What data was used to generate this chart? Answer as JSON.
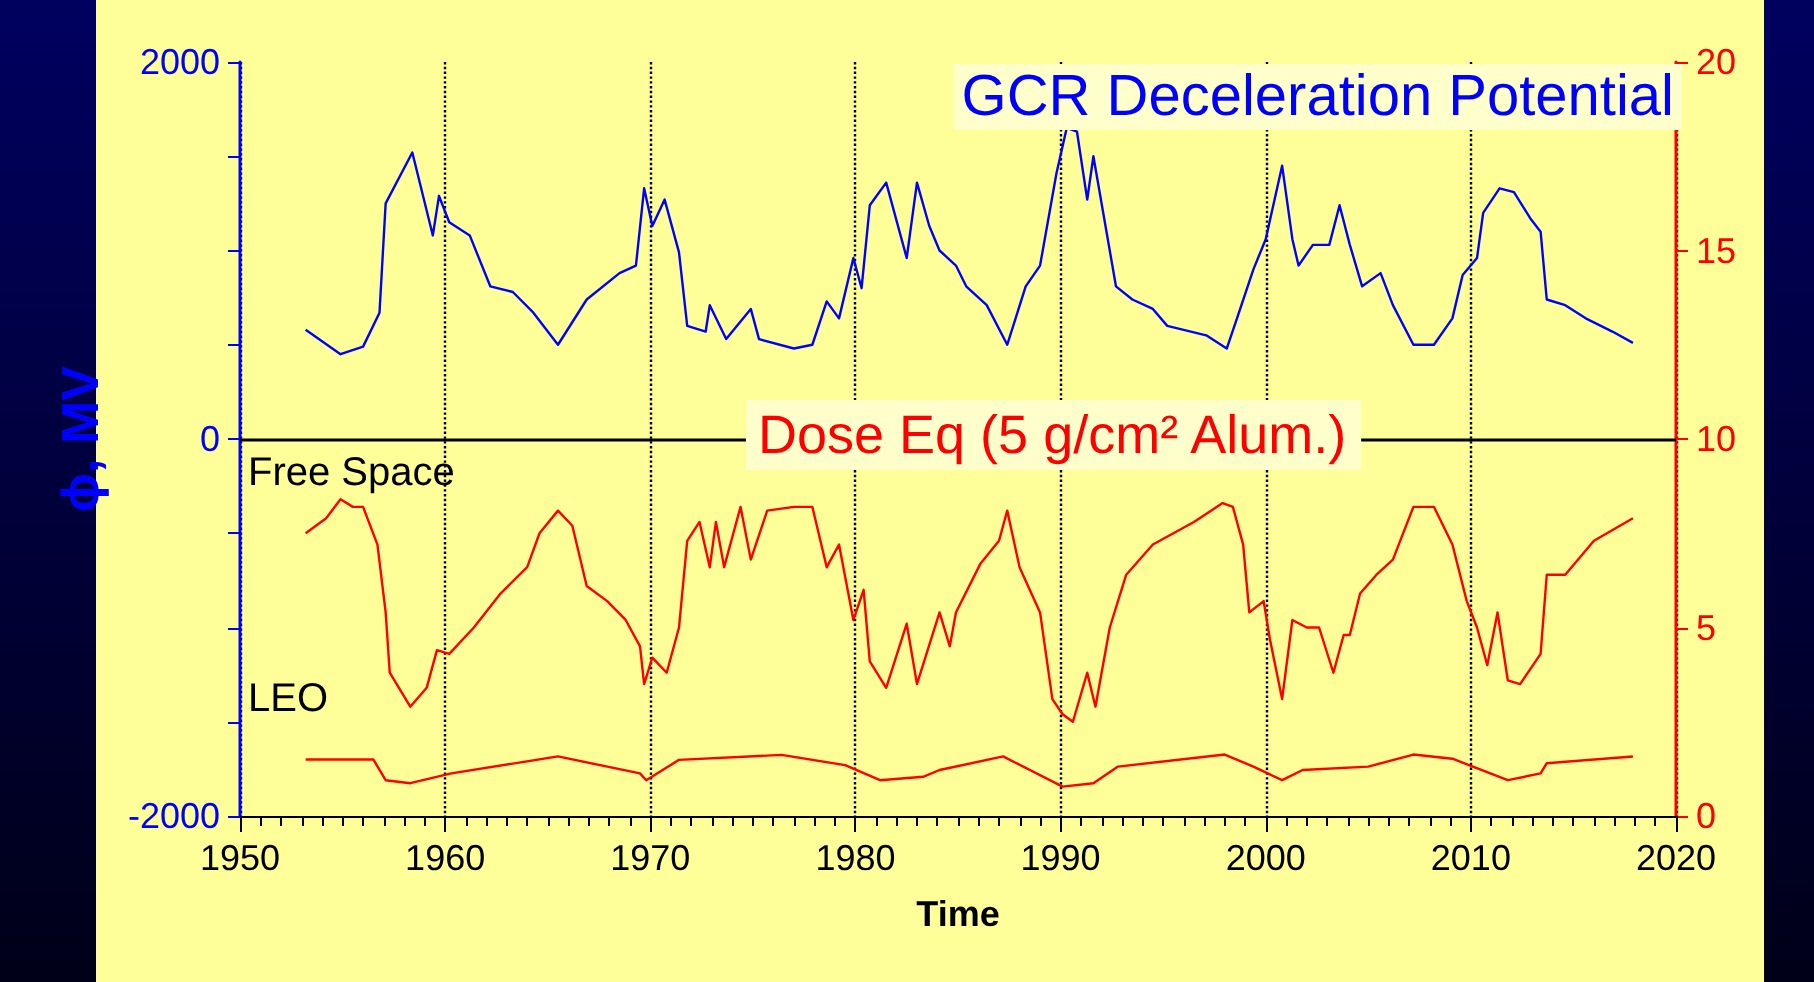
{
  "chart_data": {
    "type": "line",
    "title": "GCR Deceleration Potential",
    "xlabel": "Time",
    "ylabel": "ϕ, MV",
    "annotations": [
      "Dose Eq (5 g/cm² Alum.)"
    ],
    "xlim": [
      1950,
      2020
    ],
    "xticks": [
      1950,
      1960,
      1970,
      1980,
      1990,
      2000,
      2010,
      2020
    ],
    "ylim": [
      -2000,
      2000
    ],
    "yticks": [
      -2000,
      {
        "value": -1500,
        "label": null
      },
      {
        "value": -1000,
        "label": null
      },
      {
        "value": -500,
        "label": null
      },
      0,
      {
        "value": 500,
        "label": null
      },
      {
        "value": 1000,
        "label": null
      },
      {
        "value": 1500,
        "label": null
      },
      2000
    ],
    "y2lim": [
      0,
      20
    ],
    "y2ticks": [
      0,
      5,
      10,
      15,
      20
    ],
    "grid": "x",
    "marker": "none",
    "ref_lines": [
      {
        "axis": "y",
        "value": 0,
        "color": "#000000"
      }
    ],
    "series": [
      {
        "color": "#0000ff",
        "x": [
          1953.2,
          1954.9,
          1956.0,
          1956.8,
          1957.1,
          1958.4,
          1959.4,
          1959.7,
          1960.2,
          1961.2,
          1962.2,
          1963.3,
          1964.3,
          1965.5,
          1966.9,
          1968.5,
          1969.3,
          1969.7,
          1970.1,
          1970.7,
          1971.4,
          1971.8,
          1972.7,
          1972.9,
          1973.7,
          1974.9,
          1975.3,
          1977.0,
          1977.9,
          1978.6,
          1979.2,
          1979.9,
          1980.3,
          1980.7,
          1981.5,
          1982.5,
          1983.0,
          1983.6,
          1984.1,
          1984.9,
          1985.4,
          1986.4,
          1987.4,
          1988.3,
          1989.0,
          1989.8,
          1990.3,
          1990.8,
          1991.3,
          1991.6,
          1992.7,
          1993.5,
          1994.5,
          1995.2,
          1997.1,
          1998.1,
          1998.6,
          1999.4,
          2000.0,
          2000.8,
          2001.3,
          2001.6,
          2002.3,
          2003.1,
          2003.6,
          2004.1,
          2004.7,
          2005.6,
          2006.2,
          2007.2,
          2008.2,
          2009.1,
          2009.6,
          2010.3,
          2010.6,
          2011.4,
          2012.1,
          2012.9,
          2013.4,
          2013.7,
          2014.6,
          2015.6,
          2016.9,
          2017.9
        ],
        "values": [
          580,
          450,
          490,
          670,
          1250,
          1520,
          1080,
          1290,
          1150,
          1080,
          810,
          780,
          670,
          500,
          740,
          880,
          920,
          1330,
          1130,
          1270,
          990,
          600,
          570,
          710,
          530,
          690,
          530,
          480,
          500,
          730,
          640,
          960,
          800,
          1240,
          1360,
          960,
          1360,
          1130,
          1000,
          920,
          810,
          710,
          500,
          810,
          920,
          1410,
          1650,
          1630,
          1270,
          1500,
          810,
          740,
          690,
          600,
          550,
          480,
          640,
          900,
          1060,
          1450,
          1060,
          920,
          1030,
          1030,
          1240,
          1030,
          810,
          880,
          710,
          500,
          500,
          640,
          870,
          960,
          1200,
          1330,
          1310,
          1170,
          1100,
          740,
          710,
          640,
          570,
          510
        ]
      },
      {
        "name": "Free Space",
        "axis": "y2",
        "color": "#ff0000",
        "x": [
          1953.2,
          1954.2,
          1954.9,
          1955.5,
          1956.0,
          1956.7,
          1957.1,
          1957.3,
          1958.3,
          1959.1,
          1959.6,
          1960.2,
          1961.4,
          1962.7,
          1964.0,
          1964.6,
          1965.5,
          1966.2,
          1966.9,
          1967.9,
          1968.8,
          1969.5,
          1969.7,
          1970.1,
          1970.8,
          1971.4,
          1971.8,
          1972.4,
          1972.9,
          1973.2,
          1973.6,
          1974.4,
          1974.9,
          1975.7,
          1977.0,
          1977.9,
          1978.6,
          1979.2,
          1979.9,
          1980.4,
          1980.7,
          1981.5,
          1982.5,
          1983.0,
          1984.1,
          1984.6,
          1984.9,
          1986.1,
          1987.0,
          1987.4,
          1988.0,
          1989.0,
          1989.6,
          1990.1,
          1990.6,
          1991.3,
          1991.7,
          1992.4,
          1993.2,
          1994.5,
          1996.5,
          1997.9,
          1998.4,
          1998.9,
          1999.2,
          1999.9,
          2000.2,
          2000.8,
          2001.3,
          2002.0,
          2002.6,
          2003.3,
          2003.8,
          2004.1,
          2004.6,
          2005.4,
          2006.2,
          2007.2,
          2008.2,
          2009.1,
          2009.8,
          2010.3,
          2010.8,
          2011.3,
          2011.8,
          2012.4,
          2013.4,
          2013.7,
          2014.6,
          2016.0,
          2017.9
        ],
        "values": [
          7.5,
          7.9,
          8.4,
          8.2,
          8.2,
          7.2,
          5.4,
          3.8,
          2.9,
          3.4,
          4.4,
          4.3,
          5.0,
          5.9,
          6.6,
          7.5,
          8.1,
          7.7,
          6.1,
          5.7,
          5.2,
          4.5,
          3.5,
          4.2,
          3.8,
          5.0,
          7.3,
          7.8,
          6.6,
          7.8,
          6.6,
          8.2,
          6.8,
          8.1,
          8.2,
          8.2,
          6.6,
          7.2,
          5.2,
          6.0,
          4.1,
          3.4,
          5.1,
          3.5,
          5.4,
          4.5,
          5.4,
          6.7,
          7.3,
          8.1,
          6.6,
          5.4,
          3.1,
          2.7,
          2.5,
          3.8,
          2.9,
          5.0,
          6.4,
          7.2,
          7.8,
          8.3,
          8.2,
          7.2,
          5.4,
          5.7,
          4.7,
          3.1,
          5.2,
          5.0,
          5.0,
          3.8,
          4.8,
          4.8,
          5.9,
          6.4,
          6.8,
          8.2,
          8.2,
          7.2,
          5.7,
          5.0,
          4.0,
          5.4,
          3.6,
          3.5,
          4.3,
          6.4,
          6.4,
          7.3,
          7.9
        ]
      },
      {
        "name": "LEO",
        "axis": "y2",
        "color": "#ff0000",
        "x": [
          1953.2,
          1956.5,
          1957.1,
          1958.3,
          1960.3,
          1965.5,
          1969.5,
          1969.8,
          1971.4,
          1976.4,
          1979.5,
          1981.2,
          1983.3,
          1984.1,
          1987.2,
          1990.1,
          1991.6,
          1992.8,
          1998.0,
          1999.4,
          2000.8,
          2001.8,
          2005.0,
          2007.2,
          2009.1,
          2010.1,
          2011.8,
          2013.4,
          2013.7,
          2017.9
        ],
        "values": [
          1.5,
          1.5,
          0.95,
          0.87,
          1.13,
          1.58,
          1.13,
          0.95,
          1.49,
          1.62,
          1.35,
          0.95,
          1.04,
          1.22,
          1.58,
          0.78,
          0.87,
          1.31,
          1.63,
          1.31,
          0.95,
          1.22,
          1.31,
          1.63,
          1.52,
          1.31,
          0.95,
          1.13,
          1.4,
          1.58
        ]
      }
    ]
  }
}
